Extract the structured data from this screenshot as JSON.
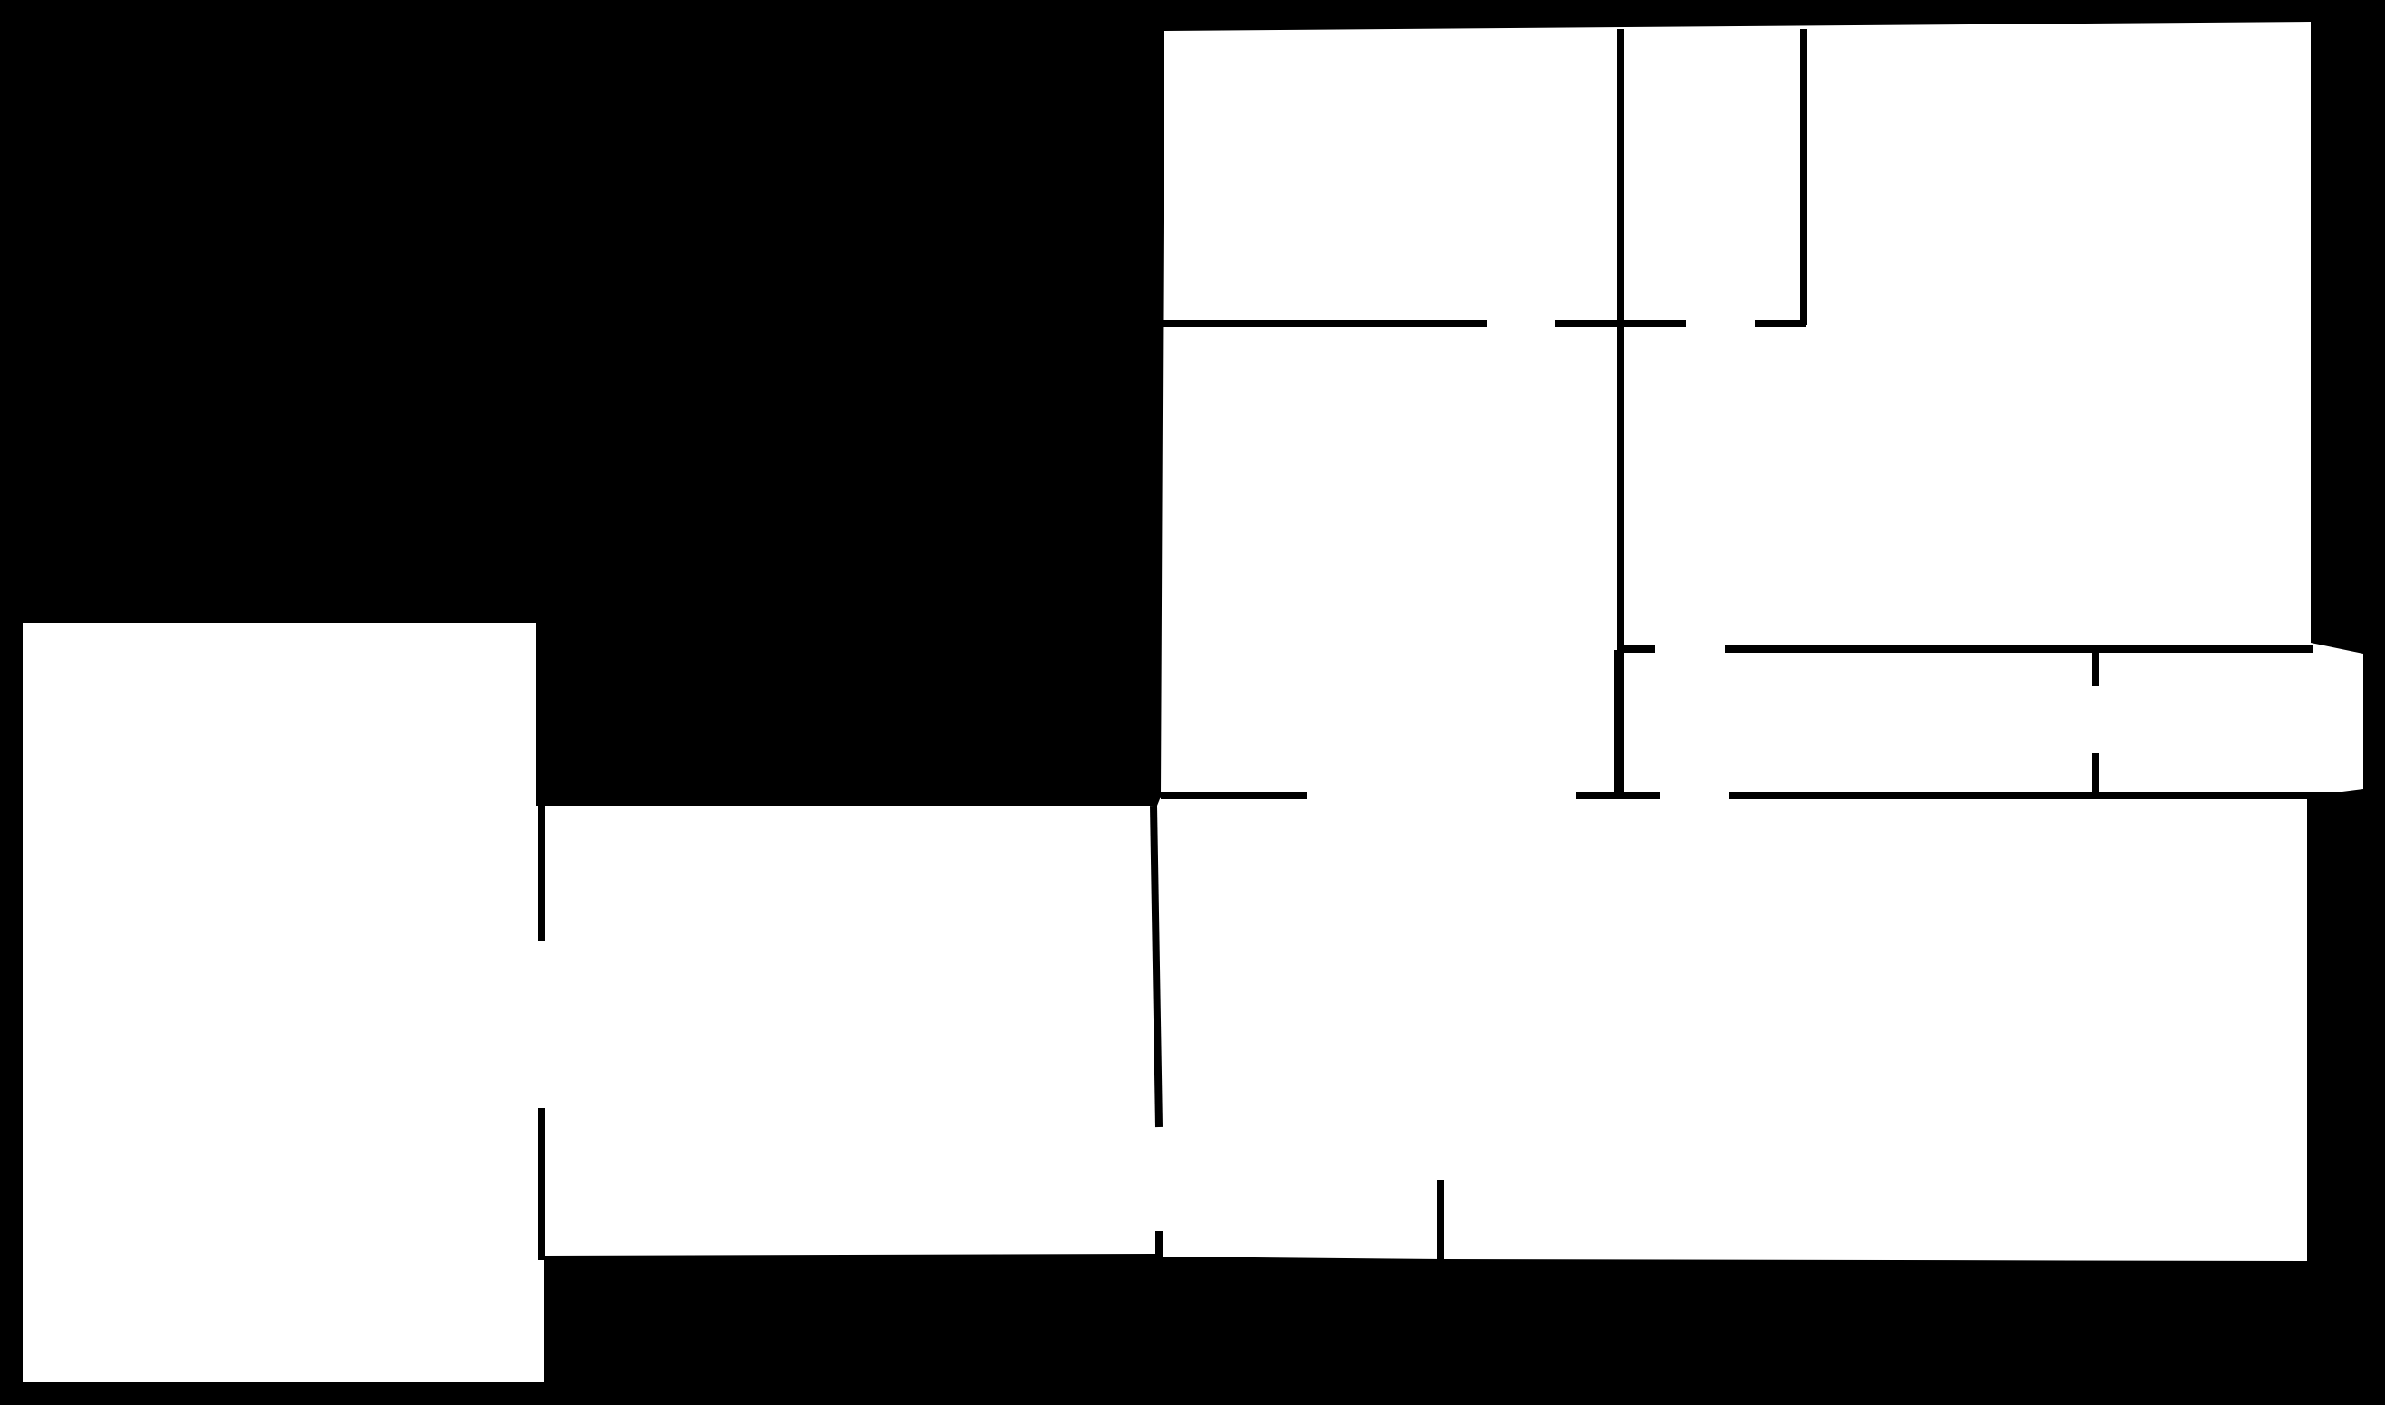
{
  "diagram": {
    "kind": "floor-plan-outline",
    "colors": {
      "background": "#000000",
      "rooms": "#ffffff",
      "walls": "#000000"
    },
    "rooms": [
      {
        "name": "room-left"
      },
      {
        "name": "room-lower-middle"
      },
      {
        "name": "room-upper-left"
      },
      {
        "name": "room-upper-right"
      },
      {
        "name": "room-right-corridor"
      }
    ]
  }
}
